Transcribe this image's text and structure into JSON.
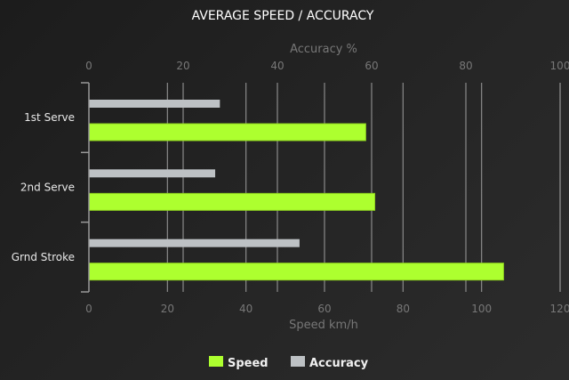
{
  "chart_data": {
    "type": "bar",
    "orientation": "horizontal",
    "title": "AVERAGE SPEED / ACCURACY",
    "categories": [
      "1st Serve",
      "2nd Serve",
      "Grnd Stroke"
    ],
    "series": [
      {
        "name": "Speed",
        "axis": "bottom",
        "color": "#adff2f",
        "values": [
          70.5,
          72.8,
          105.6
        ]
      },
      {
        "name": "Accuracy",
        "axis": "top",
        "color": "#bdc1c4",
        "values": [
          27.8,
          26.8,
          44.7
        ]
      }
    ],
    "x_bottom": {
      "label": "Speed km/h",
      "range": [
        0,
        120
      ],
      "ticks": [
        "0",
        "20",
        "40",
        "60",
        "80",
        "100",
        "120"
      ]
    },
    "x_top": {
      "label": "Accuracy %",
      "range": [
        0,
        100
      ],
      "ticks": [
        "0",
        "20",
        "40",
        "60",
        "80",
        "100"
      ]
    },
    "grid": true,
    "legend_position": "bottom"
  }
}
